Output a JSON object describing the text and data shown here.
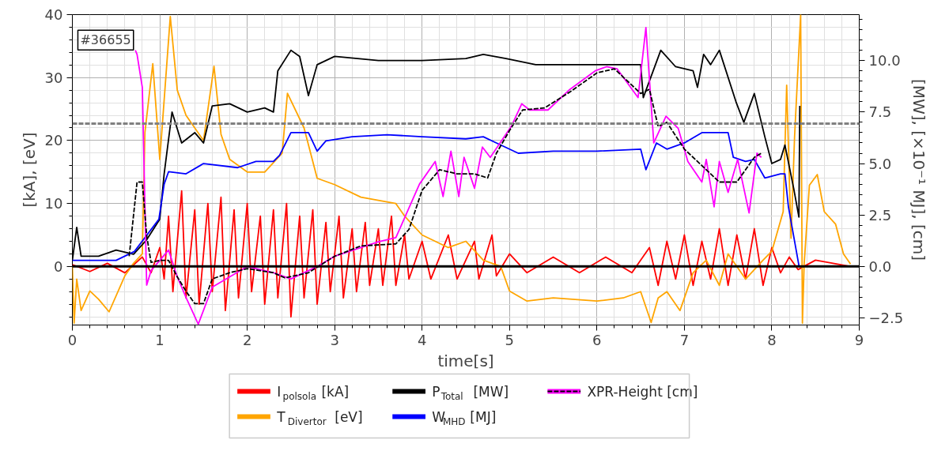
{
  "chart_data": {
    "type": "line",
    "xlabel": "time[s]",
    "ylabel": "[kA], [eV]",
    "y2label": "[MW], [×10⁻¹ MJ], [cm]",
    "annotations": [
      "#36655"
    ],
    "xlim": [
      0,
      9
    ],
    "xticks": [
      0,
      1,
      2,
      3,
      4,
      5,
      6,
      7,
      8,
      9
    ],
    "ylim": [
      -9.3,
      40
    ],
    "yticks": [
      0,
      10,
      20,
      30,
      40
    ],
    "y2lim": [
      -2.84,
      12.23
    ],
    "y2ticks": [
      {
        "value": -2.5,
        "label": "−2.5"
      },
      {
        "value": 0,
        "label": "0.0"
      },
      {
        "value": 2.5,
        "label": "2.5"
      },
      {
        "value": 5,
        "label": "5.0"
      },
      {
        "value": 7.5,
        "label": "7.5"
      },
      {
        "value": 10,
        "label": "10.0"
      }
    ],
    "grid": true,
    "legend": "bottom",
    "ref_lines": [
      {
        "axis": "y",
        "value": 0,
        "color": "#000000",
        "line_style": "solid"
      },
      {
        "axis": "y",
        "value": 22.7,
        "color": "#808080",
        "line_style": "dashed"
      }
    ],
    "series": [
      {
        "name": "I$_{polsola}$ [kA]",
        "color": "#ff0000",
        "x": [
          0,
          0.2,
          0.4,
          0.6,
          0.8,
          0.9,
          1.0,
          1.05,
          1.1,
          1.15,
          1.25,
          1.3,
          1.4,
          1.45,
          1.55,
          1.6,
          1.7,
          1.75,
          1.85,
          1.9,
          2.0,
          2.05,
          2.15,
          2.2,
          2.3,
          2.35,
          2.45,
          2.5,
          2.6,
          2.65,
          2.75,
          2.8,
          2.9,
          2.95,
          3.05,
          3.1,
          3.2,
          3.25,
          3.35,
          3.4,
          3.5,
          3.55,
          3.65,
          3.7,
          3.8,
          3.85,
          4.0,
          4.1,
          4.3,
          4.4,
          4.6,
          4.65,
          4.8,
          4.85,
          5.0,
          5.2,
          5.5,
          5.8,
          6.1,
          6.4,
          6.6,
          6.7,
          6.8,
          6.9,
          7.0,
          7.1,
          7.2,
          7.3,
          7.4,
          7.5,
          7.6,
          7.7,
          7.8,
          7.9,
          8.0,
          8.1,
          8.2,
          8.3,
          8.5,
          8.7,
          8.9
        ],
        "values": [
          0.3,
          -0.8,
          0.5,
          -1.0,
          1.5,
          -1,
          3,
          -2,
          8,
          -4,
          12,
          -5,
          9,
          -6,
          10,
          -4,
          11,
          -7,
          9,
          -5,
          10,
          -4,
          8,
          -6,
          9,
          -5,
          10,
          -8,
          8,
          -5,
          9,
          -6,
          7,
          -4,
          8,
          -5,
          6,
          -4,
          7,
          -3,
          6,
          -3,
          8,
          -3,
          5,
          -2,
          4,
          -2,
          5,
          -2,
          4,
          -2,
          5,
          -1.5,
          2,
          -1,
          1.5,
          -1,
          1.5,
          -1,
          3,
          -3,
          4,
          -2,
          5,
          -3,
          4,
          -2,
          6,
          -3,
          5,
          -2,
          6,
          -3,
          3,
          -1,
          1.5,
          -0.5,
          1,
          0.5,
          0
        ]
      },
      {
        "name": "T$_{Divertor}$ [eV]",
        "color": "#ffa500",
        "x": [
          0,
          0.02,
          0.05,
          0.1,
          0.2,
          0.3,
          0.42,
          0.6,
          0.7,
          0.8,
          0.83,
          0.92,
          1.0,
          1.12,
          1.2,
          1.3,
          1.5,
          1.62,
          1.7,
          1.8,
          2.0,
          2.2,
          2.4,
          2.46,
          2.65,
          2.8,
          3.0,
          3.3,
          3.7,
          3.8,
          4.0,
          4.3,
          4.5,
          4.7,
          4.9,
          5.0,
          5.2,
          5.5,
          6.0,
          6.3,
          6.5,
          6.62,
          6.7,
          6.8,
          6.95,
          7.1,
          7.25,
          7.4,
          7.5,
          7.7,
          7.9,
          8.0,
          8.13,
          8.17,
          8.22,
          8.26,
          8.33,
          8.35,
          8.37,
          8.43,
          8.52,
          8.6,
          8.73,
          8.82,
          8.9
        ],
        "values": [
          0,
          -9,
          -2,
          -7,
          -3.9,
          -5.2,
          -7.2,
          -1.5,
          0.5,
          2,
          21.3,
          32.2,
          17,
          39.7,
          28,
          24,
          20,
          31.8,
          21,
          17,
          15,
          15,
          18,
          27.5,
          22,
          14,
          13,
          11,
          10,
          8,
          5,
          3,
          4,
          1,
          0,
          -3.9,
          -5.5,
          -5,
          -5.5,
          -5,
          -4,
          -8.9,
          -5,
          -4,
          -7,
          -1,
          1,
          -3,
          2,
          -2,
          1,
          2.4,
          8.7,
          28.8,
          4.5,
          20.5,
          40,
          -9,
          0.4,
          12.9,
          14.6,
          8.7,
          6.7,
          2,
          0.4
        ]
      },
      {
        "name": "P$_{Total}$ [MW]",
        "color": "#000000",
        "axis": "y2",
        "x": [
          0,
          0.05,
          0.1,
          0.3,
          0.5,
          0.7,
          0.85,
          1.0,
          1.05,
          1.14,
          1.25,
          1.4,
          1.5,
          1.6,
          1.8,
          2.0,
          2.2,
          2.3,
          2.35,
          2.5,
          2.6,
          2.7,
          2.8,
          3.0,
          3.5,
          4.0,
          4.5,
          4.7,
          4.96,
          5.3,
          5.5,
          6.0,
          6.5,
          6.53,
          6.73,
          6.9,
          7.1,
          7.15,
          7.22,
          7.3,
          7.4,
          7.59,
          7.68,
          7.8,
          7.92,
          8.0,
          8.1,
          8.15,
          8.25,
          8.31,
          8.32
        ],
        "values": [
          0.3,
          1.9,
          0.5,
          0.5,
          0.8,
          0.6,
          1.3,
          2.3,
          4.5,
          7.5,
          6.0,
          6.5,
          6.0,
          7.8,
          7.9,
          7.5,
          7.7,
          7.5,
          9.5,
          10.5,
          10.2,
          8.3,
          9.8,
          10.2,
          10.0,
          10.0,
          10.1,
          10.3,
          10.1,
          9.8,
          9.8,
          9.8,
          9.8,
          8.2,
          10.5,
          9.7,
          9.5,
          8.7,
          10.3,
          9.8,
          10.5,
          8.0,
          7.0,
          8.4,
          6.3,
          5.0,
          5.2,
          5.9,
          3.8,
          2.4,
          7.8
        ]
      },
      {
        "name": "W$_{MHD}$ [MJ]",
        "color": "#0000ff",
        "axis": "y2",
        "x": [
          0,
          0.5,
          0.71,
          0.99,
          1.05,
          1.1,
          1.3,
          1.5,
          1.89,
          2.1,
          2.3,
          2.37,
          2.5,
          2.7,
          2.8,
          2.9,
          3.2,
          3.6,
          4.0,
          4.5,
          4.7,
          4.85,
          5.1,
          5.5,
          6.0,
          6.5,
          6.56,
          6.68,
          6.8,
          7.0,
          7.2,
          7.5,
          7.56,
          7.7,
          7.8,
          7.92,
          8.1,
          8.15,
          8.19,
          8.31
        ],
        "values": [
          0.3,
          0.3,
          0.73,
          2.3,
          4.0,
          4.6,
          4.5,
          5.0,
          4.8,
          5.1,
          5.1,
          5.4,
          6.5,
          6.5,
          5.6,
          6.1,
          6.3,
          6.4,
          6.3,
          6.2,
          6.3,
          6.0,
          5.5,
          5.6,
          5.6,
          5.7,
          4.7,
          6.0,
          5.7,
          6.0,
          6.5,
          6.5,
          5.3,
          5.1,
          5.2,
          4.3,
          4.5,
          4.5,
          2.9,
          0.05
        ]
      },
      {
        "name": "XPR-Height [cm]",
        "color": "#ff00ff",
        "axis": "y2",
        "x": [
          0.72,
          0.74,
          0.8,
          0.85,
          0.9,
          1.0,
          1.1,
          1.2,
          1.3,
          1.44,
          1.6,
          2.0,
          2.3,
          2.5,
          2.8,
          3.0,
          3.5,
          3.7,
          3.97,
          4.15,
          4.24,
          4.33,
          4.42,
          4.48,
          4.6,
          4.69,
          4.78,
          5.02,
          5.14,
          5.23,
          5.44,
          5.69,
          5.98,
          6.11,
          6.23,
          6.47,
          6.56,
          6.65,
          6.79,
          6.93,
          7.04,
          7.2,
          7.25,
          7.34,
          7.4,
          7.5,
          7.61,
          7.74,
          7.83,
          7.88
        ],
        "values": [
          10.5,
          10.3,
          8.7,
          -0.9,
          -0.2,
          0.3,
          0.8,
          -0.5,
          -1.5,
          -2.8,
          -1.0,
          0,
          -0.3,
          -0.6,
          0,
          0.5,
          1.2,
          1.4,
          4.0,
          5.1,
          3.4,
          5.6,
          3.4,
          5.3,
          3.8,
          5.8,
          5.3,
          6.8,
          7.9,
          7.6,
          7.6,
          8.6,
          9.5,
          9.7,
          9.6,
          8.2,
          11.6,
          6.0,
          7.3,
          6.7,
          5.1,
          4.1,
          5.2,
          2.9,
          5.1,
          3.6,
          5.2,
          2.6,
          5.5,
          5.3
        ]
      },
      {
        "color": "#000000",
        "axis": "y2",
        "line_style": "dashed",
        "x": [
          0.65,
          0.74,
          0.8,
          0.85,
          0.9,
          1.0,
          1.1,
          1.2,
          1.3,
          1.4,
          1.5,
          1.6,
          1.8,
          2.0,
          2.3,
          2.43,
          2.7,
          2.85,
          3.0,
          3.3,
          3.7,
          3.85,
          4.0,
          4.2,
          4.4,
          4.6,
          4.75,
          4.85,
          5.0,
          5.15,
          5.4,
          5.7,
          6.0,
          6.2,
          6.4,
          6.5,
          6.6,
          6.7,
          6.8,
          7.0,
          7.25,
          7.4,
          7.6,
          7.8,
          7.88
        ],
        "values": [
          0.5,
          4.1,
          4.1,
          1.5,
          0.2,
          0.3,
          0.3,
          -0.5,
          -1.2,
          -1.8,
          -1.8,
          -0.6,
          -0.3,
          -0.1,
          -0.3,
          -0.55,
          -0.3,
          0.1,
          0.5,
          1.0,
          1.1,
          1.8,
          3.7,
          4.7,
          4.5,
          4.5,
          4.3,
          5.5,
          6.6,
          7.6,
          7.7,
          8.5,
          9.4,
          9.6,
          8.8,
          8.4,
          8.6,
          6.8,
          7.0,
          5.7,
          4.7,
          4.1,
          4.1,
          5.3,
          5.5
        ]
      }
    ]
  }
}
